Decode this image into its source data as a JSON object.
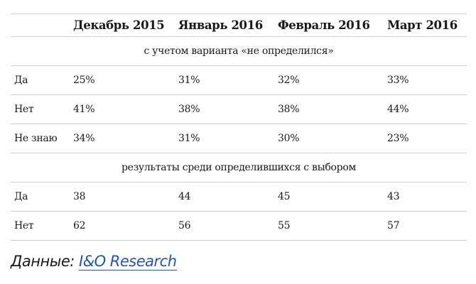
{
  "table": {
    "headers": [
      "",
      "Декабрь 2015",
      "Январь 2016",
      "Февраль 2016",
      "Март 2016"
    ],
    "sections": [
      {
        "title": "с учетом варианта «не определился»",
        "rows": [
          {
            "label": "Да",
            "values": [
              "25%",
              "31%",
              "32%",
              "33%"
            ]
          },
          {
            "label": "Нет",
            "values": [
              "41%",
              "38%",
              "38%",
              "44%"
            ]
          },
          {
            "label": "Не знаю",
            "values": [
              "34%",
              "31%",
              "30%",
              "23%"
            ]
          }
        ]
      },
      {
        "title": "результаты среди определившихся с выбором",
        "rows": [
          {
            "label": "Да",
            "values": [
              "38",
              "44",
              "45",
              "43"
            ]
          },
          {
            "label": "Нет",
            "values": [
              "62",
              "56",
              "55",
              "57"
            ]
          }
        ]
      }
    ]
  },
  "footer": {
    "prefix": "Данные:",
    "link_text": "I&O Research",
    "link_color": "#1f55c0"
  }
}
